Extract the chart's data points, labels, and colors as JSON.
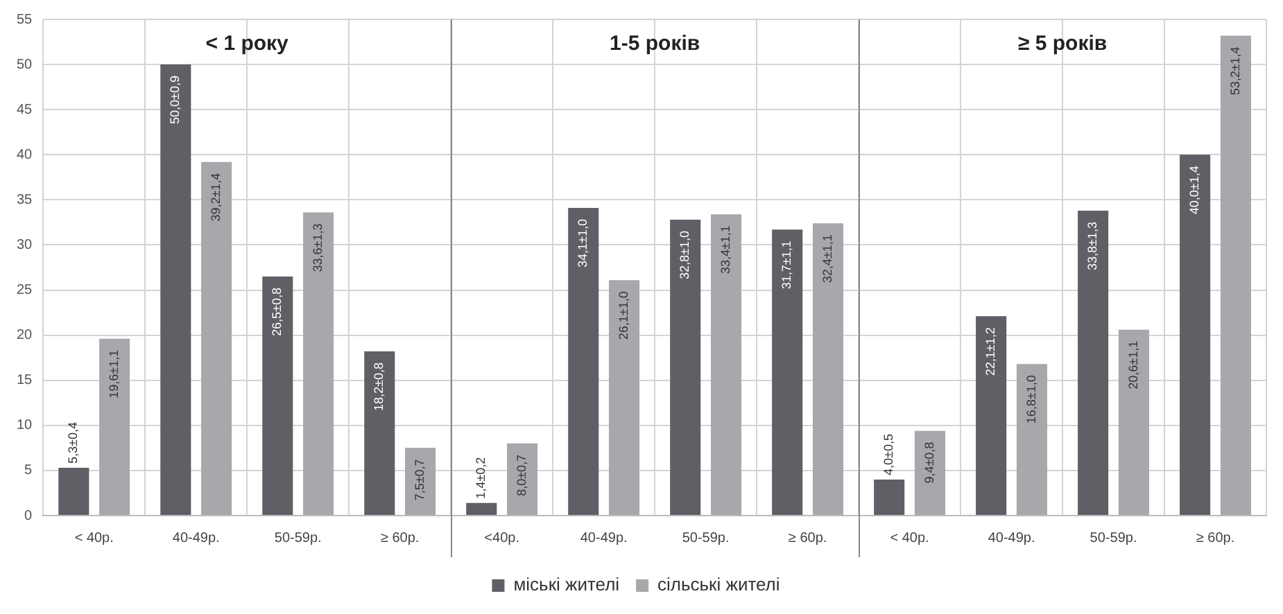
{
  "chart_data": {
    "type": "bar",
    "categories": [
      "< 40р.",
      "40-49р.",
      "50-59р.",
      "≥ 60р.",
      "<40р.",
      "40-49р.",
      "50-59р.",
      "≥ 60р.",
      "< 40р.",
      "40-49р.",
      "50-59р.",
      "≥ 60р."
    ],
    "series": [
      {
        "name": "міські жителі",
        "color": "#5f6066",
        "values": [
          5.3,
          50.0,
          26.5,
          18.2,
          1.4,
          34.1,
          32.8,
          31.7,
          4.0,
          22.1,
          33.8,
          40.0
        ],
        "value_labels": [
          "5,3±0,4",
          "50,0±0,9",
          "26,5±0,8",
          "18,2±0,8",
          "1,4±0,2",
          "34,1±1,0",
          "32,8±1,0",
          "31,7±1,1",
          "4,0±0,5",
          "22,1±1,2",
          "33,8±1,3",
          "40,0±1,4"
        ]
      },
      {
        "name": "сільські жителі",
        "color": "#a6a8ab",
        "values": [
          19.6,
          39.2,
          33.6,
          7.5,
          8.0,
          26.1,
          33.4,
          32.4,
          9.4,
          16.8,
          20.6,
          53.2
        ],
        "value_labels": [
          "19,6±1,1",
          "39,2±1,4",
          "33,6±1,3",
          "7,5±0,7",
          "8,0±0,7",
          "26,1±1,0",
          "33,4±1,1",
          "32,4±1,1",
          "9,4±0,8",
          "16,8±1,0",
          "20,6±1,1",
          "53,2±1,4"
        ]
      }
    ],
    "annotations": [
      "< 1 року",
      "1-5 років",
      "≥ 5 років"
    ],
    "ylim": [
      0,
      55
    ],
    "yticks": [
      0,
      5,
      10,
      15,
      20,
      25,
      30,
      35,
      40,
      45,
      50,
      55
    ],
    "grid": true,
    "legend": "bottom"
  }
}
